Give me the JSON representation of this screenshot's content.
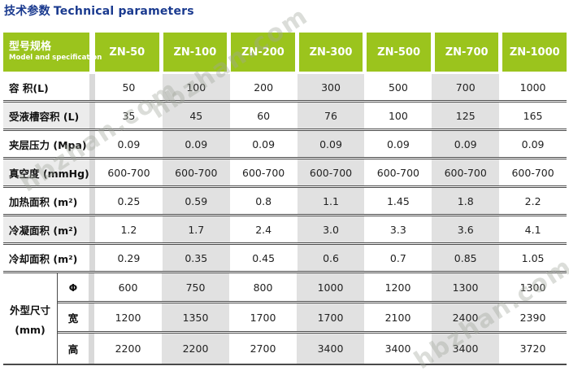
{
  "title": {
    "zh": "技术参数",
    "en": "Technical parameters"
  },
  "watermark": {
    "text": "hbzhan.com"
  },
  "colors": {
    "header_green": "#9bc41d",
    "column_gray": "#e1e1e1",
    "strip_gray": "#d9d9d9",
    "border_dark": "#4a4a4a",
    "title_navy": "#1a3a8f"
  },
  "table": {
    "header": {
      "model_zh": "型号规格",
      "model_en": "Model and specification",
      "models": [
        "ZN-50",
        "ZN-100",
        "ZN-200",
        "ZN-300",
        "ZN-500",
        "ZN-700",
        "ZN-1000"
      ]
    },
    "rows": [
      {
        "label": "容 积(L)",
        "values": [
          "50",
          "100",
          "200",
          "300",
          "500",
          "700",
          "1000"
        ]
      },
      {
        "label": "受液槽容积 (L)",
        "values": [
          "35",
          "45",
          "60",
          "76",
          "100",
          "125",
          "165"
        ]
      },
      {
        "label": "夹层压力 (Mpa)",
        "values": [
          "0.09",
          "0.09",
          "0.09",
          "0.09",
          "0.09",
          "0.09",
          "0.09"
        ]
      },
      {
        "label": "真空度 (mmHg)",
        "values": [
          "600-700",
          "600-700",
          "600-700",
          "600-700",
          "600-700",
          "600-700",
          "600-700"
        ]
      },
      {
        "label": "加热面积 (m²)",
        "values": [
          "0.25",
          "0.59",
          "0.8",
          "1.1",
          "1.45",
          "1.8",
          "2.2"
        ]
      },
      {
        "label": "冷凝面积 (m²)",
        "values": [
          "1.2",
          "1.7",
          "2.4",
          "3.0",
          "3.3",
          "3.6",
          "4.1"
        ]
      },
      {
        "label": "冷却面积 (m²)",
        "values": [
          "0.29",
          "0.35",
          "0.45",
          "0.6",
          "0.7",
          "0.85",
          "1.05"
        ]
      }
    ],
    "dimensions": {
      "label_zh": "外型尺寸",
      "label_unit": "(mm)",
      "rows": [
        {
          "label": "Φ",
          "values": [
            "600",
            "750",
            "800",
            "1000",
            "1200",
            "1300",
            "1300"
          ]
        },
        {
          "label": "宽",
          "values": [
            "1200",
            "1350",
            "1700",
            "1700",
            "2100",
            "2400",
            "2390"
          ]
        },
        {
          "label": "高",
          "values": [
            "2200",
            "2200",
            "2700",
            "3400",
            "3400",
            "3400",
            "3720"
          ]
        }
      ]
    }
  }
}
